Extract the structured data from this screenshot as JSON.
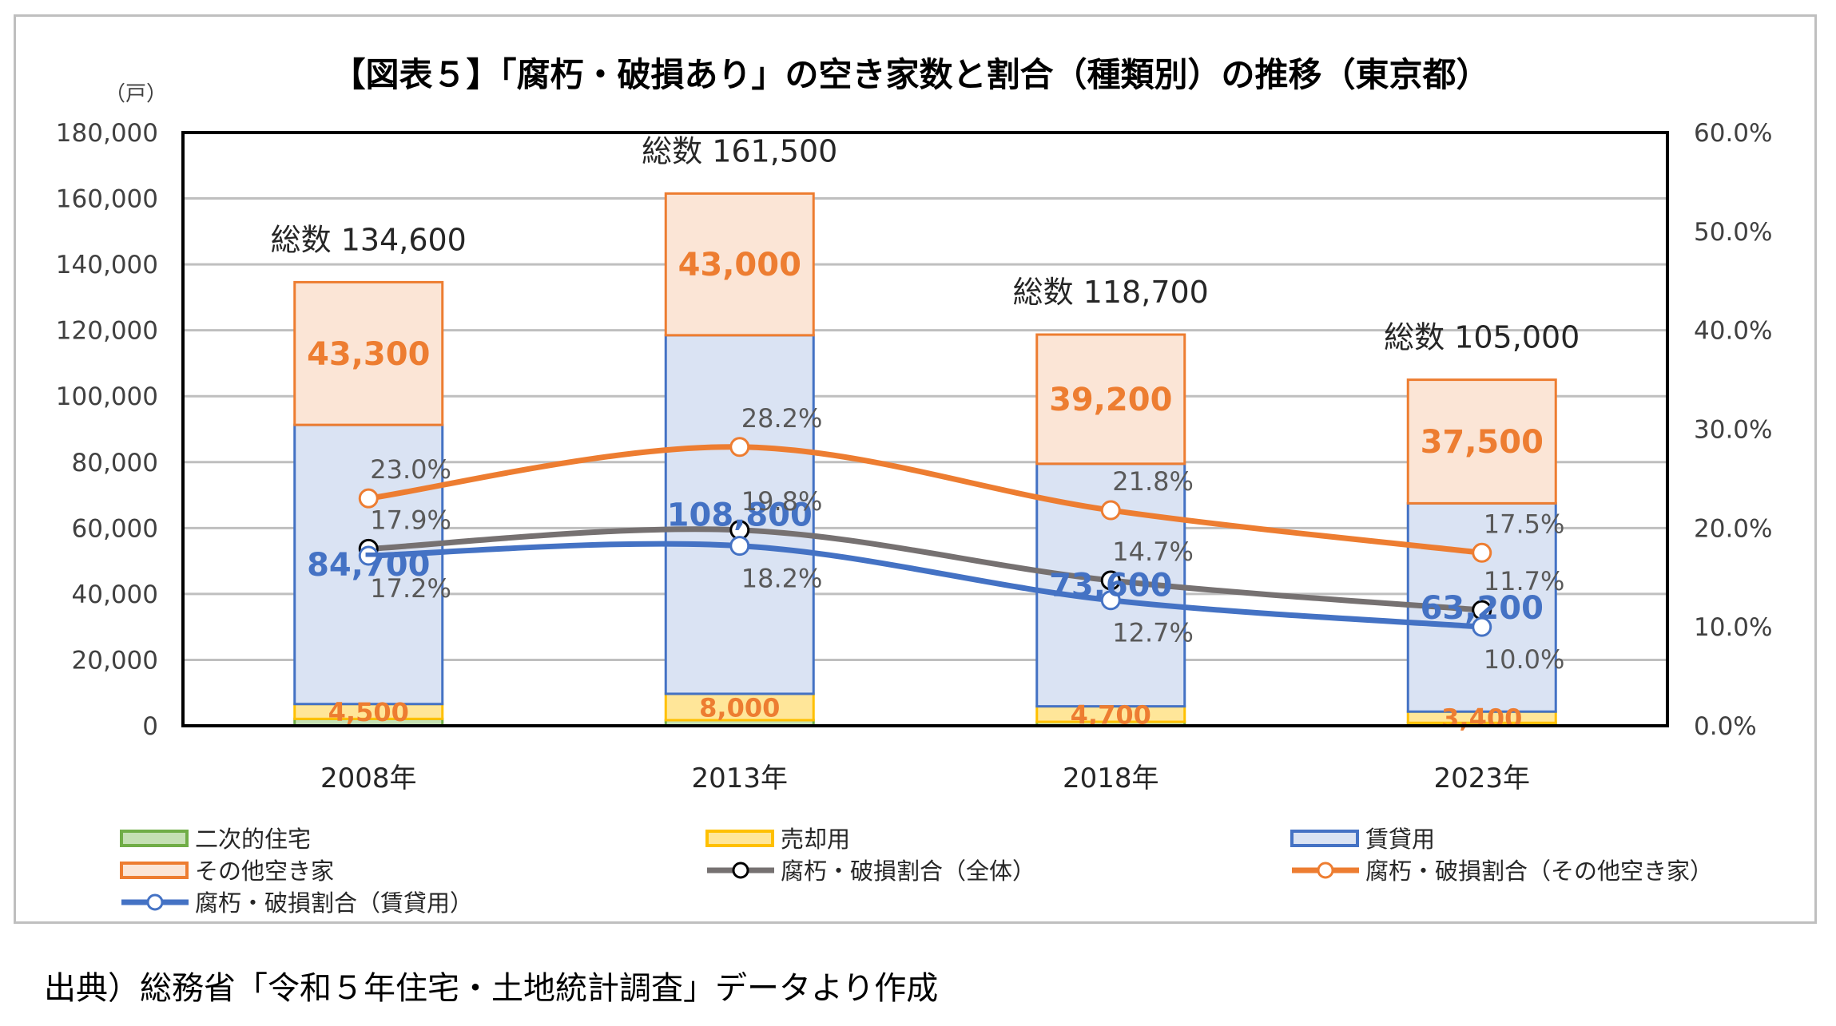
{
  "chart_data": {
    "type": "bar",
    "stacked": true,
    "title": "【図表５】「腐朽・破損あり」の空き家数と割合（種類別）の推移（東京都）",
    "y_unit_label": "（戸）",
    "categories": [
      "2008年",
      "2013年",
      "2018年",
      "2023年"
    ],
    "ylim": [
      0,
      180000
    ],
    "y_ticks": [
      "0",
      "20,000",
      "40,000",
      "60,000",
      "80,000",
      "100,000",
      "120,000",
      "140,000",
      "160,000",
      "180,000"
    ],
    "y_tick_values": [
      0,
      20000,
      40000,
      60000,
      80000,
      100000,
      120000,
      140000,
      160000,
      180000
    ],
    "y2lim": [
      0,
      60
    ],
    "y2_ticks": [
      "0.0%",
      "10.0%",
      "20.0%",
      "30.0%",
      "40.0%",
      "50.0%",
      "60.0%"
    ],
    "y2_tick_values": [
      0,
      10,
      20,
      30,
      40,
      50,
      60
    ],
    "grid": true,
    "bar_series": [
      {
        "name": "二次的住宅",
        "values": [
          2100,
          1700,
          1200,
          900
        ],
        "labels": [
          "",
          "",
          "",
          ""
        ],
        "fill": "#c5e0b4",
        "stroke": "#70ad47",
        "label_color": "#ed7d31"
      },
      {
        "name": "売却用",
        "values": [
          4500,
          8000,
          4700,
          3400
        ],
        "labels": [
          "4,500",
          "8,000",
          "4,700",
          "3,400"
        ],
        "fill": "#ffe699",
        "stroke": "#ffc000",
        "label_color": "#ed7d31"
      },
      {
        "name": "賃貸用",
        "values": [
          84700,
          108800,
          73600,
          63200
        ],
        "labels": [
          "84,700",
          "108,800",
          "73,600",
          "63,200"
        ],
        "fill": "#dae3f3",
        "stroke": "#4472c4",
        "label_color": "#4472c4"
      },
      {
        "name": "その他空き家",
        "values": [
          43300,
          43000,
          39200,
          37500
        ],
        "labels": [
          "43,300",
          "43,000",
          "39,200",
          "37,500"
        ],
        "fill": "#fbe5d6",
        "stroke": "#ed7d31",
        "label_color": "#ed7d31"
      }
    ],
    "totals": [
      "総数 134,600",
      "総数 161,500",
      "総数 118,700",
      "総数 105,000"
    ],
    "total_values": [
      134600,
      161500,
      118700,
      105000
    ],
    "line_series": [
      {
        "name": "腐朽・破損割合（全体）",
        "axis": "right",
        "values": [
          17.9,
          19.8,
          14.7,
          11.7
        ],
        "labels": [
          "17.9%",
          "19.8%",
          "14.7%",
          "11.7%"
        ],
        "color": "#767171",
        "marker_stroke": "#000000",
        "label_pos": "above"
      },
      {
        "name": "腐朽・破損割合（その他空き家）",
        "axis": "right",
        "values": [
          23.0,
          28.2,
          21.8,
          17.5
        ],
        "labels": [
          "23.0%",
          "28.2%",
          "21.8%",
          "17.5%"
        ],
        "color": "#ed7d31",
        "marker_stroke": "#ed7d31",
        "label_pos": "above"
      },
      {
        "name": "腐朽・破損割合（賃貸用）",
        "axis": "right",
        "values": [
          17.2,
          18.2,
          12.7,
          10.0
        ],
        "labels": [
          "17.2%",
          "18.2%",
          "12.7%",
          "10.0%"
        ],
        "color": "#4472c4",
        "marker_stroke": "#4472c4",
        "label_pos": "below"
      }
    ],
    "legend": {
      "placement": "bottom",
      "items": [
        {
          "label": "二次的住宅",
          "kind": "box",
          "fill": "#c5e0b4",
          "stroke": "#70ad47"
        },
        {
          "label": "売却用",
          "kind": "box",
          "fill": "#ffe699",
          "stroke": "#ffc000"
        },
        {
          "label": "賃貸用",
          "kind": "box",
          "fill": "#dae3f3",
          "stroke": "#4472c4"
        },
        {
          "label": "その他空き家",
          "kind": "box",
          "fill": "#fbe5d6",
          "stroke": "#ed7d31"
        },
        {
          "label": "腐朽・破損割合（全体）",
          "kind": "line",
          "color": "#767171",
          "marker_stroke": "#000000"
        },
        {
          "label": "腐朽・破損割合（その他空き家）",
          "kind": "line",
          "color": "#ed7d31",
          "marker_stroke": "#ed7d31"
        },
        {
          "label": "腐朽・破損割合（賃貸用）",
          "kind": "line",
          "color": "#4472c4",
          "marker_stroke": "#4472c4"
        }
      ]
    }
  },
  "source_note": "出典）総務省「令和５年住宅・土地統計調査」データより作成"
}
